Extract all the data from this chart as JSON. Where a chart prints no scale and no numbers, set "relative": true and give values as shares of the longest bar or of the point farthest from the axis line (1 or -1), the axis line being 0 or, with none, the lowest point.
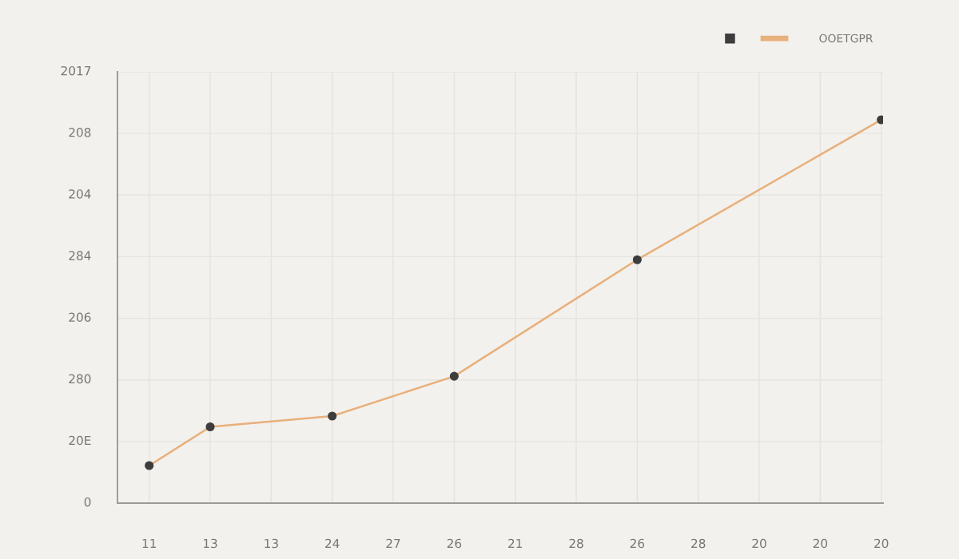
{
  "chart_data": {
    "type": "line",
    "categories": [
      "11",
      "13",
      "13",
      "24",
      "27",
      "26",
      "21",
      "28",
      "26",
      "28",
      "20",
      "20",
      "20"
    ],
    "series": [
      {
        "name": "OOETGPR",
        "color": "#e8b07c",
        "values": [
          0.098,
          0.199,
          null,
          0.227,
          null,
          0.331,
          null,
          null,
          0.635,
          null,
          null,
          null,
          1
        ]
      }
    ],
    "relative": true,
    "annotations": [
      "2017",
      "208",
      "204",
      "284",
      "206",
      "280",
      "20E",
      "0"
    ],
    "grid": true,
    "legend": "top right",
    "marker": "circle",
    "line_style": "solid"
  }
}
